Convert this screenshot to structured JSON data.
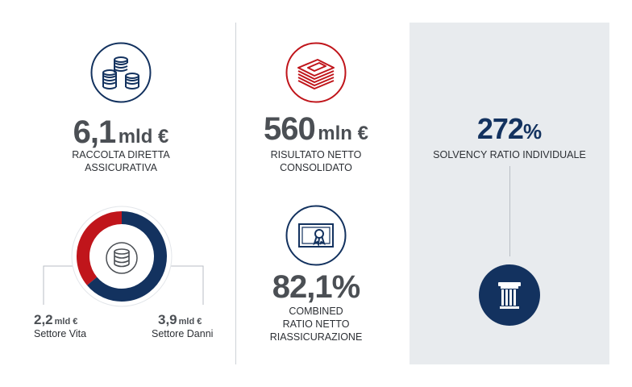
{
  "colors": {
    "navy": "#13325f",
    "red": "#c0151b",
    "gray_text": "#4b4f54",
    "panel_bg": "#e8ebee"
  },
  "col1": {
    "icon": "coins-stack-icon",
    "value": "6,1",
    "unit": "mld €",
    "label_line1": "RACCOLTA DIRETTA",
    "label_line2": "ASSICURATIVA",
    "donut": {
      "icon": "database-icon",
      "chart_data": {
        "type": "pie",
        "series": [
          {
            "name": "Settore Vita",
            "value": 2.2,
            "unit": "mld €",
            "color": "#c0151b"
          },
          {
            "name": "Settore Danni",
            "value": 3.9,
            "unit": "mld €",
            "color": "#13325f"
          }
        ]
      },
      "left_value": "2,2",
      "left_unit": "mld €",
      "left_label": "Settore Vita",
      "right_value": "3,9",
      "right_unit": "mld €",
      "right_label": "Settore Danni"
    }
  },
  "col2": {
    "top": {
      "icon": "banknotes-icon",
      "value": "560",
      "unit": "mln €",
      "label_line1": "RISULTATO NETTO",
      "label_line2": "CONSOLIDATO"
    },
    "bottom": {
      "icon": "certificate-icon",
      "value": "82,1%",
      "label_line1": "COMBINED",
      "label_line2": "RATIO NETTO",
      "label_line3": "RIASSICURAZIONE"
    }
  },
  "col3": {
    "value": "272",
    "unit": "%",
    "label": "SOLVENCY RATIO INDIVIDUALE",
    "icon": "pillar-icon"
  }
}
